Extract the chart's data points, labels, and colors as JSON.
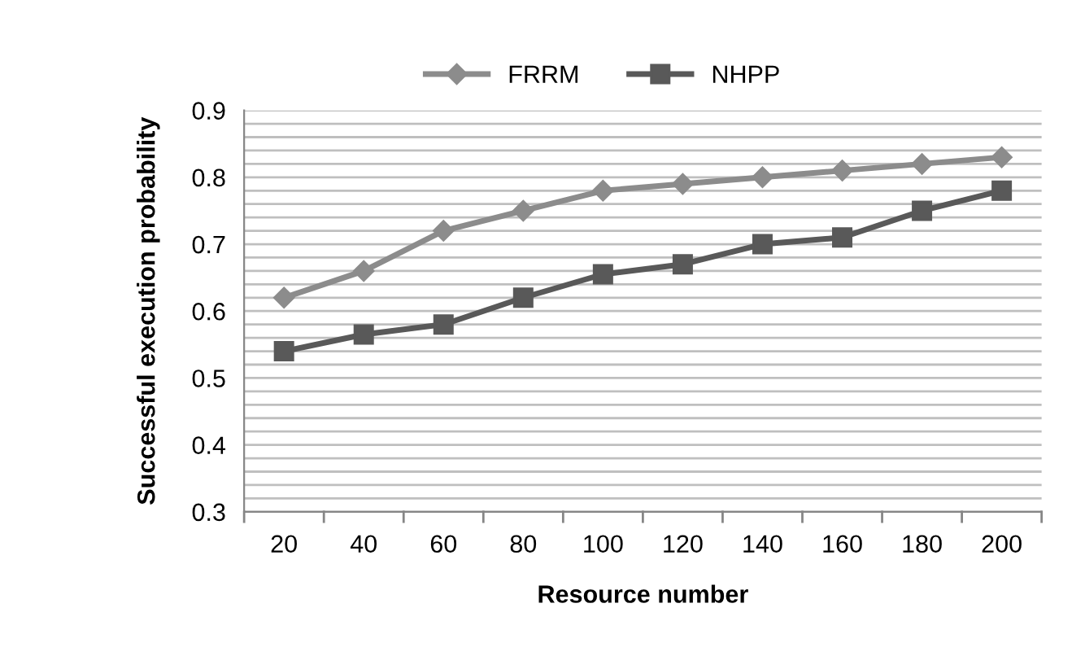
{
  "chart_data": {
    "type": "line",
    "xlabel": "Resource number",
    "ylabel": "Successful execution probability",
    "categories": [
      "20",
      "40",
      "60",
      "80",
      "100",
      "120",
      "140",
      "160",
      "180",
      "200"
    ],
    "series": [
      {
        "name": "FRRM",
        "color": "#8c8c8c",
        "marker": "diamond",
        "values": [
          0.62,
          0.66,
          0.72,
          0.75,
          0.78,
          0.79,
          0.8,
          0.81,
          0.82,
          0.83
        ]
      },
      {
        "name": "NHPP",
        "color": "#595959",
        "marker": "square",
        "values": [
          0.54,
          0.565,
          0.58,
          0.62,
          0.655,
          0.67,
          0.7,
          0.71,
          0.75,
          0.78
        ]
      }
    ],
    "ylim": [
      0.3,
      0.9
    ],
    "yticks": [
      0.3,
      {
        "value": 0.32,
        "label": null
      },
      {
        "value": 0.34,
        "label": null
      },
      {
        "value": 0.36,
        "label": null
      },
      {
        "value": 0.38,
        "label": null
      },
      0.4,
      {
        "value": 0.42,
        "label": null
      },
      {
        "value": 0.44,
        "label": null
      },
      {
        "value": 0.46,
        "label": null
      },
      {
        "value": 0.48,
        "label": null
      },
      0.5,
      {
        "value": 0.52,
        "label": null
      },
      {
        "value": 0.54,
        "label": null
      },
      {
        "value": 0.56,
        "label": null
      },
      {
        "value": 0.58,
        "label": null
      },
      0.6,
      {
        "value": 0.62,
        "label": null
      },
      {
        "value": 0.64,
        "label": null
      },
      {
        "value": 0.66,
        "label": null
      },
      {
        "value": 0.68,
        "label": null
      },
      0.7,
      {
        "value": 0.72,
        "label": null
      },
      {
        "value": 0.74,
        "label": null
      },
      {
        "value": 0.76,
        "label": null
      },
      {
        "value": 0.78,
        "label": null
      },
      0.8,
      {
        "value": 0.82,
        "label": null
      },
      {
        "value": 0.84,
        "label": null
      },
      {
        "value": 0.86,
        "label": null
      },
      {
        "value": 0.88,
        "label": null
      },
      0.9
    ],
    "grid": "y",
    "legend": "top",
    "line_style": "solid"
  }
}
